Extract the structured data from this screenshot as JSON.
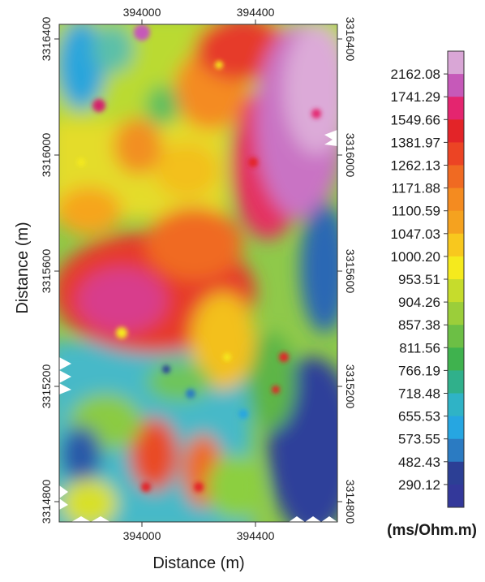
{
  "map": {
    "x_axis_title": "Distance (m)",
    "y_axis_title": "Distance (m)",
    "x_ticks": [
      "394000",
      "394400"
    ],
    "y_ticks": [
      "3316400",
      "3316000",
      "3315600",
      "3315200",
      "3314800"
    ],
    "x_range": [
      393700,
      394640
    ],
    "y_range": [
      3314700,
      3316500
    ]
  },
  "colorbar": {
    "unit": "(ms/Ohm.m)",
    "labels": [
      "2162.08",
      "1741.29",
      "1549.66",
      "1381.97",
      "1262.13",
      "1171.88",
      "1100.59",
      "1047.03",
      "1000.20",
      "953.51",
      "904.26",
      "857.38",
      "811.56",
      "766.19",
      "718.48",
      "655.53",
      "573.55",
      "482.43",
      "290.12"
    ],
    "colors": [
      "#d9a6d6",
      "#c659b9",
      "#e4256f",
      "#e32428",
      "#ec4424",
      "#f06a22",
      "#f48b20",
      "#f5a21f",
      "#f8c81e",
      "#f5ea1d",
      "#c6dc2c",
      "#9bce3a",
      "#6cbf45",
      "#3fb24e",
      "#30b08b",
      "#2fb3c6",
      "#26a6e1",
      "#2b7bc2",
      "#2c3f95",
      "#33389a"
    ]
  }
}
